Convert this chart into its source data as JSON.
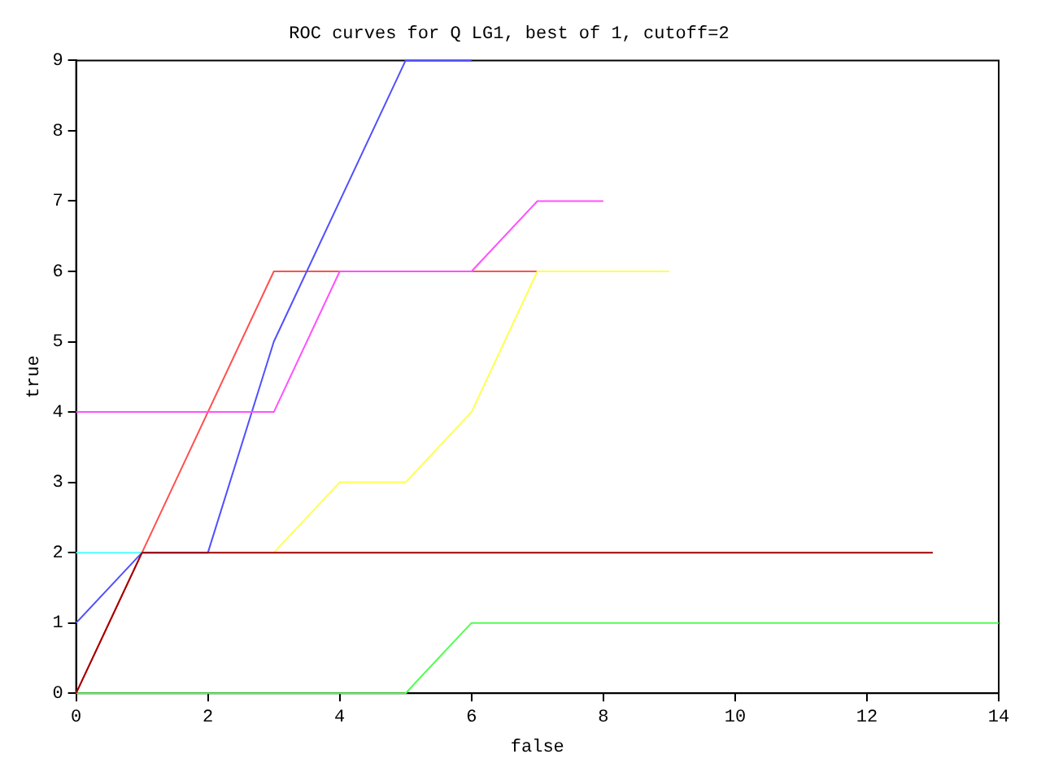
{
  "chart_data": {
    "type": "line",
    "title": "ROC curves for Q LG1, best of 1, cutoff=2",
    "xlabel": "false",
    "ylabel": "true",
    "xlim": [
      0,
      14
    ],
    "xticks": [
      0,
      2,
      4,
      6,
      8,
      10,
      12,
      14
    ],
    "ylim": [
      0,
      9
    ],
    "yticks": [
      0,
      1,
      2,
      3,
      4,
      5,
      6,
      7,
      8,
      9
    ],
    "grid": false,
    "legend": false,
    "marker": "none",
    "line_style": "solid",
    "series": [
      {
        "color": "#ff5050",
        "x": [
          0,
          1,
          3,
          7
        ],
        "values": [
          0,
          2,
          6,
          6
        ]
      },
      {
        "color": "#50ff50",
        "x": [
          0,
          5,
          6,
          14
        ],
        "values": [
          0,
          0,
          1,
          1
        ]
      },
      {
        "color": "#5050ff",
        "x": [
          0,
          1,
          2,
          3,
          5,
          6
        ],
        "values": [
          1,
          2,
          2,
          5,
          9,
          9
        ]
      },
      {
        "color": "#ff50ff",
        "x": [
          0,
          3,
          4,
          6,
          7,
          8
        ],
        "values": [
          4,
          4,
          6,
          6,
          7,
          7
        ]
      },
      {
        "color": "#50ffff",
        "x": [
          0,
          1
        ],
        "values": [
          2,
          2
        ]
      },
      {
        "color": "#ffff50",
        "x": [
          3,
          4,
          5,
          6,
          7,
          9
        ],
        "values": [
          2,
          3,
          3,
          4,
          6,
          6
        ]
      },
      {
        "color": "#a00000",
        "x": [
          0,
          1,
          13
        ],
        "values": [
          0,
          2,
          2
        ]
      }
    ]
  }
}
